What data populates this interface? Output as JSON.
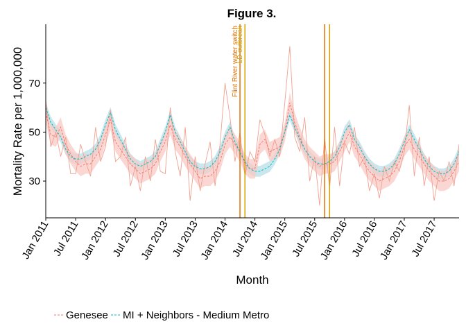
{
  "chart_data": {
    "type": "line",
    "title": "Figure 3.",
    "xlabel": "Month",
    "ylabel": "Mortality Rate per 1,000,000",
    "x_start": "Jan 2011",
    "x_end": "Dec 2017",
    "x_ticks": [
      "Jan 2011",
      "Jul 2011",
      "Jan 2012",
      "Jul 2012",
      "Jan 2013",
      "Jul 2013",
      "Jan 2014",
      "Jul 2014",
      "Jan 2015",
      "Jul 2015",
      "Jan 2016",
      "Jul 2016",
      "Jan 2017",
      "Jul 2017"
    ],
    "y_ticks": [
      30,
      50,
      70
    ],
    "ylim": [
      15,
      94
    ],
    "grid": false,
    "legend_position": "bottom-left",
    "series": [
      {
        "name": "Genesee",
        "color": "#F8766D",
        "style": "dashed",
        "values": [
          58,
          49,
          48,
          52,
          45,
          41,
          38,
          36,
          37,
          37,
          40,
          43,
          49,
          55,
          46,
          43,
          40,
          37,
          35,
          33,
          34,
          35,
          37,
          42,
          46,
          53,
          47,
          44,
          40,
          37,
          34,
          31,
          32,
          32,
          34,
          38,
          45,
          48,
          45,
          42,
          37,
          35,
          35,
          45,
          47,
          42,
          43,
          44,
          50,
          62,
          54,
          48,
          43,
          40,
          38,
          36,
          37,
          37,
          38,
          42,
          46,
          50,
          44,
          41,
          37,
          34,
          32,
          30,
          31,
          32,
          34,
          38,
          44,
          47,
          43,
          40,
          37,
          34,
          32,
          30,
          30,
          31,
          34,
          38
        ],
        "raw_values": [
          63,
          44,
          50,
          40,
          48,
          33,
          33,
          45,
          38,
          32,
          52,
          38,
          44,
          59,
          38,
          40,
          48,
          28,
          36,
          26,
          40,
          30,
          47,
          34,
          33,
          60,
          42,
          32,
          52,
          22,
          40,
          26,
          37,
          46,
          28,
          45,
          70,
          56,
          38,
          50,
          32,
          42,
          38,
          55,
          49,
          40,
          47,
          40,
          62,
          85,
          48,
          42,
          56,
          30,
          40,
          20,
          48,
          27,
          52,
          28,
          46,
          41,
          52,
          36,
          40,
          26,
          33,
          23,
          36,
          30,
          38,
          34,
          42,
          61,
          32,
          48,
          28,
          40,
          22,
          34,
          30,
          38,
          28,
          45
        ]
      },
      {
        "name": "MI + Neighbors - Medium Metro",
        "color": "#00BFC4",
        "style": "dashed",
        "values": [
          60,
          54,
          51,
          48,
          43,
          40,
          39,
          39,
          40,
          41,
          43,
          47,
          53,
          58,
          51,
          47,
          43,
          39,
          37,
          36,
          37,
          38,
          40,
          45,
          50,
          57,
          50,
          46,
          42,
          38,
          36,
          35,
          35,
          36,
          38,
          42,
          48,
          52,
          46,
          42,
          38,
          35,
          34,
          34,
          35,
          36,
          39,
          43,
          50,
          57,
          52,
          47,
          43,
          40,
          38,
          37,
          37,
          38,
          40,
          44,
          50,
          53,
          47,
          44,
          40,
          37,
          35,
          34,
          34,
          35,
          37,
          41,
          46,
          51,
          47,
          43,
          39,
          36,
          34,
          33,
          33,
          34,
          37,
          42
        ]
      }
    ],
    "annotations": [
      {
        "label": "Flint River water switch",
        "date": "Apr 2014",
        "color": "#E07000"
      },
      {
        "label": "LD outbreak",
        "date": "May 2014",
        "color": "#D4A000"
      },
      {
        "label": "",
        "date": "Sep 2015",
        "color": "#E07000"
      },
      {
        "label": "",
        "date": "Oct 2015",
        "color": "#D4A000"
      }
    ],
    "legend": [
      "Genesee",
      "MI + Neighbors - Medium Metro"
    ]
  }
}
